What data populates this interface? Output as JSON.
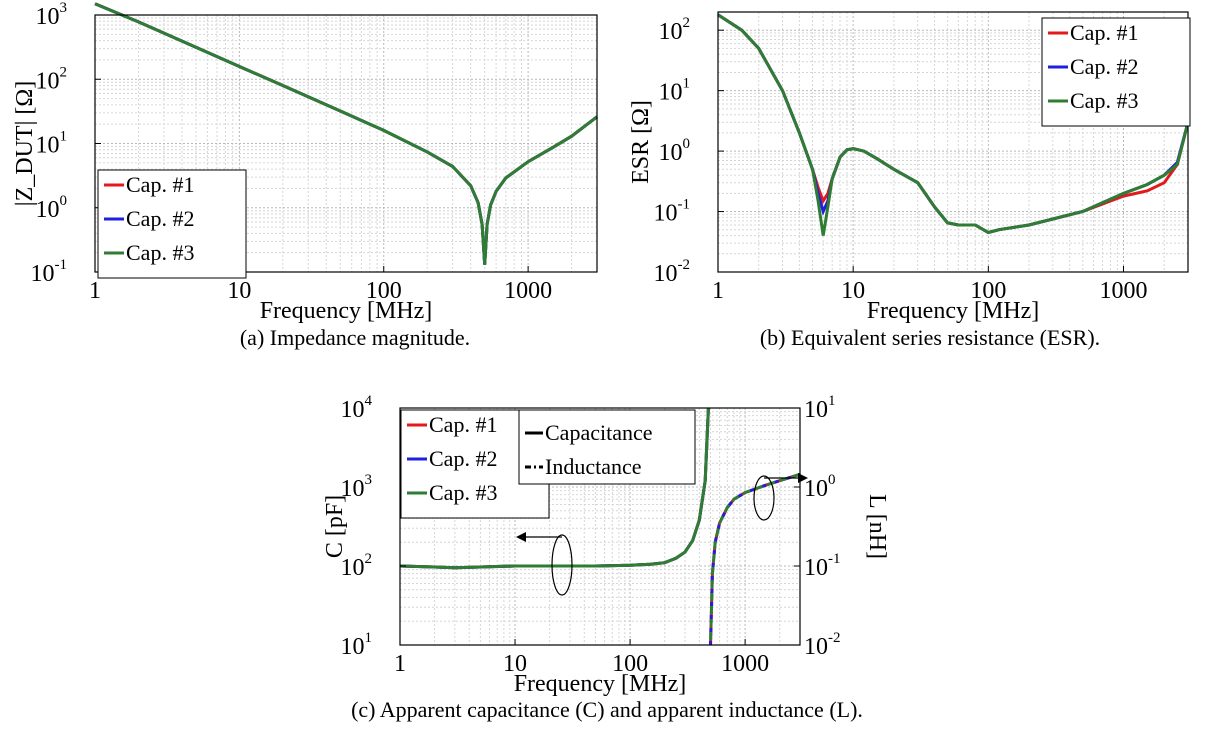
{
  "chart_data": [
    {
      "type": "line",
      "id": "a",
      "caption": "(a) Impedance magnitude.",
      "xlabel": "Frequency [MHz]",
      "ylabel": "|Z_DUT| [Ω]",
      "xscale": "log",
      "yscale": "log",
      "xlim": [
        1,
        3000
      ],
      "ylim": [
        0.1,
        1000
      ],
      "xticks": [
        1,
        10,
        100,
        1000
      ],
      "xtick_labels": [
        "1",
        "10",
        "100",
        "1000"
      ],
      "yticks": [
        0.1,
        1,
        10,
        100,
        1000
      ],
      "ytick_exponents": [
        "-1",
        "0",
        "1",
        "2",
        "3"
      ],
      "grid": true,
      "legend": {
        "placement": "bottom-left",
        "entries": [
          "Cap. #1",
          "Cap. #2",
          "Cap. #3"
        ]
      },
      "series": [
        {
          "name": "Cap. #1",
          "color": "#e31a1c",
          "x": [
            1,
            2,
            5,
            10,
            20,
            50,
            100,
            200,
            300,
            400,
            450,
            480,
            500,
            520,
            550,
            600,
            700,
            1000,
            1500,
            2000,
            3000
          ],
          "y": [
            1500,
            780,
            315,
            158,
            80,
            32,
            16,
            7.4,
            4.4,
            2.2,
            1.2,
            0.55,
            0.13,
            0.55,
            1.1,
            1.8,
            2.9,
            5.2,
            8.8,
            13,
            26
          ]
        },
        {
          "name": "Cap. #2",
          "color": "#1f1fe0",
          "x": [
            1,
            2,
            5,
            10,
            20,
            50,
            100,
            200,
            300,
            400,
            450,
            480,
            500,
            520,
            550,
            600,
            700,
            1000,
            1500,
            2000,
            3000
          ],
          "y": [
            1500,
            780,
            315,
            158,
            80,
            32,
            16,
            7.4,
            4.4,
            2.2,
            1.2,
            0.55,
            0.13,
            0.55,
            1.1,
            1.8,
            2.9,
            5.2,
            8.8,
            13,
            26
          ]
        },
        {
          "name": "Cap. #3",
          "color": "#2e7d32",
          "x": [
            1,
            2,
            5,
            10,
            20,
            50,
            100,
            200,
            300,
            400,
            450,
            480,
            500,
            520,
            550,
            600,
            700,
            1000,
            1500,
            2000,
            3000
          ],
          "y": [
            1500,
            780,
            315,
            158,
            80,
            32,
            16,
            7.4,
            4.4,
            2.2,
            1.2,
            0.55,
            0.13,
            0.55,
            1.1,
            1.8,
            2.9,
            5.2,
            8.8,
            13,
            26
          ]
        }
      ]
    },
    {
      "type": "line",
      "id": "b",
      "caption": "(b) Equivalent series resistance (ESR).",
      "xlabel": "Frequency [MHz]",
      "ylabel": "ESR [Ω]",
      "xscale": "log",
      "yscale": "log",
      "xlim": [
        1,
        3000
      ],
      "ylim": [
        0.01,
        200
      ],
      "xticks": [
        1,
        10,
        100,
        1000
      ],
      "xtick_labels": [
        "1",
        "10",
        "100",
        "1000"
      ],
      "yticks": [
        0.01,
        0.1,
        1,
        10,
        100
      ],
      "ytick_exponents": [
        "-2",
        "-1",
        "0",
        "1",
        "2"
      ],
      "grid": true,
      "legend": {
        "placement": "top-right",
        "entries": [
          "Cap. #1",
          "Cap. #2",
          "Cap. #3"
        ]
      },
      "series": [
        {
          "name": "Cap. #1",
          "color": "#e31a1c",
          "x": [
            1,
            1.5,
            2,
            3,
            4,
            5,
            5.5,
            6,
            6.5,
            7,
            8,
            9,
            10,
            12,
            15,
            20,
            30,
            40,
            50,
            60,
            80,
            100,
            120,
            200,
            500,
            1000,
            1500,
            2000,
            2500,
            3000
          ],
          "y": [
            180,
            100,
            50,
            10,
            2,
            0.5,
            0.25,
            0.15,
            0.2,
            0.35,
            0.8,
            1.05,
            1.1,
            1.0,
            0.75,
            0.5,
            0.3,
            0.12,
            0.065,
            0.06,
            0.06,
            0.045,
            0.05,
            0.06,
            0.1,
            0.18,
            0.22,
            0.3,
            0.6,
            3
          ]
        },
        {
          "name": "Cap. #2",
          "color": "#1f1fe0",
          "x": [
            1,
            1.5,
            2,
            3,
            4,
            5,
            5.5,
            6,
            6.5,
            7,
            8,
            9,
            10,
            12,
            15,
            20,
            30,
            40,
            50,
            60,
            80,
            100,
            120,
            200,
            500,
            1000,
            1500,
            2000,
            2500,
            3000
          ],
          "y": [
            180,
            100,
            50,
            10,
            2,
            0.5,
            0.2,
            0.1,
            0.15,
            0.35,
            0.8,
            1.05,
            1.1,
            1.0,
            0.75,
            0.5,
            0.3,
            0.12,
            0.065,
            0.06,
            0.06,
            0.045,
            0.05,
            0.06,
            0.1,
            0.2,
            0.28,
            0.4,
            0.65,
            3
          ]
        },
        {
          "name": "Cap. #3",
          "color": "#2e7d32",
          "x": [
            1,
            1.5,
            2,
            3,
            4,
            5,
            5.5,
            6,
            6.5,
            7,
            8,
            9,
            10,
            12,
            15,
            20,
            30,
            40,
            50,
            60,
            80,
            100,
            120,
            200,
            500,
            1000,
            1500,
            2000,
            2500,
            3000
          ],
          "y": [
            180,
            100,
            50,
            10,
            2,
            0.5,
            0.15,
            0.04,
            0.12,
            0.35,
            0.8,
            1.05,
            1.1,
            1.0,
            0.75,
            0.5,
            0.3,
            0.12,
            0.065,
            0.06,
            0.06,
            0.045,
            0.05,
            0.06,
            0.1,
            0.2,
            0.28,
            0.4,
            0.6,
            3
          ]
        }
      ]
    },
    {
      "type": "line",
      "id": "c",
      "caption": "(c) Apparent capacitance (C) and apparent inductance (L).",
      "xlabel": "Frequency [MHz]",
      "ylabel": "C [pF]",
      "ylabel_right": "L [nH]",
      "xscale": "log",
      "yscale": "log",
      "xlim": [
        1,
        3000
      ],
      "ylim": [
        10,
        10000
      ],
      "ylim_right": [
        0.01,
        10
      ],
      "xticks": [
        1,
        10,
        100,
        1000
      ],
      "xtick_labels": [
        "1",
        "10",
        "100",
        "1000"
      ],
      "yticks": [
        10,
        100,
        1000,
        10000
      ],
      "ytick_exponents": [
        "1",
        "2",
        "3",
        "4"
      ],
      "yticks_right": [
        0.01,
        0.1,
        1,
        10
      ],
      "ytick_right_exponents": [
        "-2",
        "-1",
        "0",
        "1"
      ],
      "grid": true,
      "legend": {
        "placement": "top-left",
        "entries": [
          "Cap. #1",
          "Cap. #2",
          "Cap. #3"
        ]
      },
      "legend2": {
        "placement": "top-center",
        "entries": [
          "Capacitance",
          "Inductance"
        ]
      },
      "series": [
        {
          "name": "Cap. #1",
          "color": "#e31a1c",
          "capacitance": {
            "x": [
              1,
              2,
              3,
              5,
              10,
              20,
              50,
              100,
              150,
              200,
              250,
              300,
              350,
              400,
              450,
              480
            ],
            "y": [
              100,
              97,
              95,
              97,
              100,
              100,
              100,
              102,
              105,
              110,
              125,
              150,
              210,
              380,
              1200,
              10000
            ]
          },
          "inductance": {
            "x": [
              500,
              520,
              550,
              600,
              700,
              800,
              1000,
              1500,
              2000,
              3000
            ],
            "y": [
              0.01,
              0.08,
              0.2,
              0.35,
              0.55,
              0.7,
              0.85,
              1.05,
              1.2,
              1.45
            ]
          }
        },
        {
          "name": "Cap. #2",
          "color": "#1f1fe0",
          "capacitance": {
            "x": [
              1,
              2,
              3,
              5,
              10,
              20,
              50,
              100,
              150,
              200,
              250,
              300,
              350,
              400,
              450,
              480
            ],
            "y": [
              100,
              97,
              95,
              97,
              100,
              100,
              100,
              102,
              105,
              110,
              125,
              150,
              210,
              380,
              1200,
              10000
            ]
          },
          "inductance": {
            "x": [
              500,
              520,
              550,
              600,
              700,
              800,
              1000,
              1500,
              2000,
              3000
            ],
            "y": [
              0.01,
              0.08,
              0.2,
              0.35,
              0.55,
              0.7,
              0.85,
              1.05,
              1.2,
              1.45
            ]
          }
        },
        {
          "name": "Cap. #3",
          "color": "#2e7d32",
          "capacitance": {
            "x": [
              1,
              2,
              3,
              5,
              10,
              20,
              50,
              100,
              150,
              200,
              250,
              300,
              350,
              400,
              450,
              480
            ],
            "y": [
              100,
              97,
              95,
              97,
              100,
              100,
              100,
              102,
              105,
              110,
              125,
              150,
              210,
              380,
              1200,
              10000
            ]
          },
          "inductance": {
            "x": [
              500,
              520,
              550,
              600,
              700,
              800,
              1000,
              1500,
              2000,
              3000
            ],
            "y": [
              0.01,
              0.08,
              0.2,
              0.35,
              0.55,
              0.7,
              0.85,
              1.05,
              1.2,
              1.45
            ]
          }
        }
      ]
    }
  ]
}
